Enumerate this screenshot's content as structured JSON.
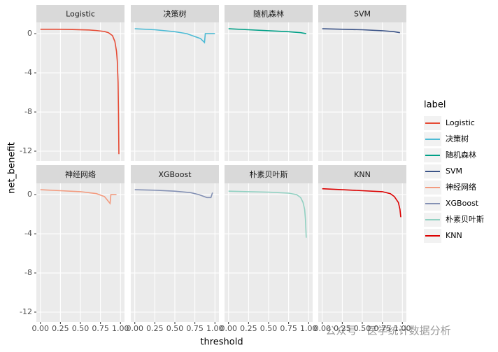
{
  "chart_data": {
    "type": "line",
    "facet": true,
    "xlabel": "threshold",
    "ylabel": "net_benefit",
    "legend_title": "label",
    "xlim": [
      -0.05,
      1.05
    ],
    "ylim": [
      -13,
      1.15
    ],
    "xticks": [
      {
        "value": 0,
        "label": "0.00"
      },
      {
        "value": 0.25,
        "label": "0.25"
      },
      {
        "value": 0.5,
        "label": "0.50"
      },
      {
        "value": 0.75,
        "label": "0.75"
      },
      {
        "value": 1,
        "label": "1.00"
      }
    ],
    "yticks": [
      0,
      -4,
      -8,
      -12
    ],
    "grid": true,
    "legend": "right",
    "series": [
      {
        "name": "Logistic",
        "color": "#e64b35",
        "x": [
          0,
          0.2,
          0.4,
          0.6,
          0.7,
          0.8,
          0.85,
          0.9,
          0.93,
          0.95,
          0.96,
          0.97,
          0.975,
          0.98
        ],
        "values": [
          0.45,
          0.45,
          0.42,
          0.38,
          0.32,
          0.22,
          0.1,
          -0.2,
          -0.8,
          -1.8,
          -2.8,
          -5,
          -8,
          -12.3
        ]
      },
      {
        "name": "决策树",
        "color": "#4dbbd5",
        "x": [
          0,
          0.25,
          0.5,
          0.65,
          0.75,
          0.82,
          0.87,
          0.88,
          0.95,
          1.0
        ],
        "values": [
          0.5,
          0.4,
          0.2,
          0,
          -0.3,
          -0.5,
          -0.9,
          0,
          0,
          0
        ]
      },
      {
        "name": "随机森林",
        "color": "#00a087",
        "x": [
          0,
          0.25,
          0.5,
          0.75,
          0.9,
          0.97
        ],
        "values": [
          0.5,
          0.4,
          0.3,
          0.2,
          0.1,
          0
        ]
      },
      {
        "name": "SVM",
        "color": "#3c5488",
        "x": [
          0,
          0.25,
          0.5,
          0.75,
          0.9,
          0.97
        ],
        "values": [
          0.5,
          0.45,
          0.4,
          0.3,
          0.2,
          0.1
        ]
      },
      {
        "name": "神经网络",
        "color": "#f39b7f",
        "x": [
          0,
          0.25,
          0.5,
          0.7,
          0.8,
          0.87,
          0.88,
          0.95
        ],
        "values": [
          0.5,
          0.4,
          0.3,
          0.1,
          -0.2,
          -0.9,
          0,
          0
        ]
      },
      {
        "name": "XGBoost",
        "color": "#8491b4",
        "x": [
          0,
          0.25,
          0.5,
          0.7,
          0.8,
          0.9,
          0.95,
          0.97
        ],
        "values": [
          0.5,
          0.45,
          0.35,
          0.2,
          0,
          -0.3,
          -0.3,
          0.2
        ]
      },
      {
        "name": "朴素贝叶斯",
        "color": "#91d1c2",
        "x": [
          0,
          0.25,
          0.5,
          0.75,
          0.85,
          0.9,
          0.93,
          0.95,
          0.96,
          0.97
        ],
        "values": [
          0.35,
          0.3,
          0.25,
          0.15,
          0,
          -0.3,
          -0.8,
          -1.5,
          -2.5,
          -4.4
        ]
      },
      {
        "name": "KNN",
        "color": "#dc0000",
        "x": [
          0,
          0.25,
          0.5,
          0.75,
          0.85,
          0.9,
          0.95,
          0.97,
          0.98
        ],
        "values": [
          0.6,
          0.5,
          0.4,
          0.3,
          0.1,
          -0.2,
          -0.8,
          -1.5,
          -2.3
        ]
      }
    ]
  },
  "watermark": "公众号 · 医学统计数据分析"
}
